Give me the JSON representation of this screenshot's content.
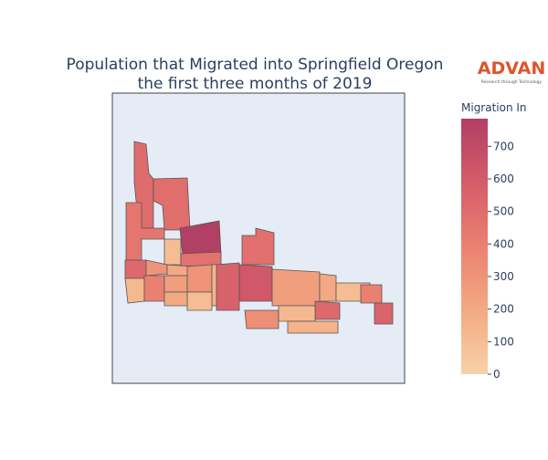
{
  "chart_data": {
    "type": "choropleth",
    "title": [
      "Population that Migrated into Springfield Oregon",
      "the first three months of 2019"
    ],
    "logo": {
      "name": "ADVAN",
      "tagline": "Research through Technology"
    },
    "colorbar_title": "Migration In",
    "zlim": [
      0,
      785
    ],
    "zticks": [
      0,
      100,
      200,
      300,
      400,
      500,
      600,
      700
    ],
    "colorscale": [
      "#f6d2a9",
      "#f5b78e",
      "#f19c7c",
      "#ea8171",
      "#dd686c",
      "#ca5268",
      "#b13f64"
    ],
    "values": [
      500,
      490,
      780,
      450,
      100,
      470,
      520,
      300,
      200,
      120,
      400,
      250,
      300,
      150,
      100,
      200,
      560,
      620,
      480,
      250,
      200,
      520,
      330,
      120,
      100,
      400,
      550,
      150
    ]
  }
}
